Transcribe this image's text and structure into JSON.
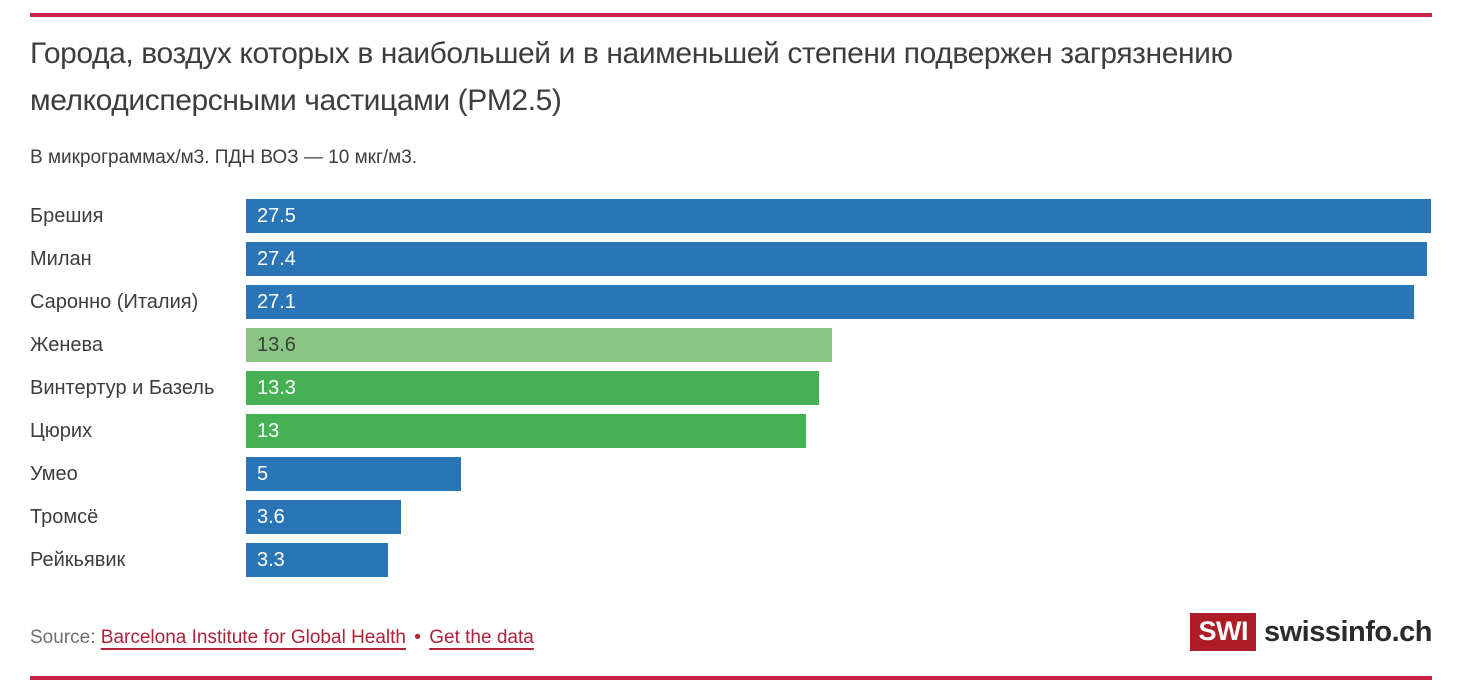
{
  "chart_data": {
    "type": "bar",
    "orientation": "horizontal",
    "title": "Города, воздух которых в наибольшей и в наименьшей степени подвержен загрязнению мелкодисперсными частицами (PM2.5)",
    "subtitle": "В микрограммах/м3. ПДН ВОЗ — 10 мкг/м3.",
    "xlim": [
      0,
      27.5
    ],
    "grid": false,
    "legend": "none",
    "value_label_position": "inside-start",
    "categories": [
      "Брешия",
      "Милан",
      "Саронно (Италия)",
      "Женева",
      "Винтертур и Базель",
      "Цюрих",
      "Умео",
      "Тромсё",
      "Рейкьявик"
    ],
    "values": [
      27.5,
      27.4,
      27.1,
      13.6,
      13.3,
      13,
      5,
      3.6,
      3.3
    ],
    "bars": [
      {
        "label": "Брешия",
        "value": 27.5,
        "display": "27.5",
        "color_key": "blue",
        "value_text": "white"
      },
      {
        "label": "Милан",
        "value": 27.4,
        "display": "27.4",
        "color_key": "blue",
        "value_text": "white"
      },
      {
        "label": "Саронно (Италия)",
        "value": 27.1,
        "display": "27.1",
        "color_key": "blue",
        "value_text": "white"
      },
      {
        "label": "Женева",
        "value": 13.6,
        "display": "13.6",
        "color_key": "light_green",
        "value_text": "dark"
      },
      {
        "label": "Винтертур и Базель",
        "value": 13.3,
        "display": "13.3",
        "color_key": "green",
        "value_text": "white"
      },
      {
        "label": "Цюрих",
        "value": 13,
        "display": "13",
        "color_key": "green",
        "value_text": "white"
      },
      {
        "label": "Умео",
        "value": 5,
        "display": "5",
        "color_key": "blue",
        "value_text": "white"
      },
      {
        "label": "Тромсё",
        "value": 3.6,
        "display": "3.6",
        "color_key": "blue",
        "value_text": "white"
      },
      {
        "label": "Рейкьявик",
        "value": 3.3,
        "display": "3.3",
        "color_key": "blue",
        "value_text": "white"
      }
    ]
  },
  "footer": {
    "source_label": "Source:",
    "source_link_label": "Barcelona Institute for Global Health",
    "separator": "•",
    "get_data_link_label": "Get the data",
    "logo_mark": "SWI",
    "logo_wordmark": "swissinfo.ch"
  },
  "colors": {
    "blue": "#2a75b6",
    "green": "#45b054",
    "light_green": "#8ac584",
    "rule_red": "#cc2348",
    "link_red": "#b02238",
    "logo_red": "#ae1c26",
    "text_dark": "#3d3d3d",
    "source_gray": "#707070",
    "wordmark_dark": "#2b2b2b"
  }
}
